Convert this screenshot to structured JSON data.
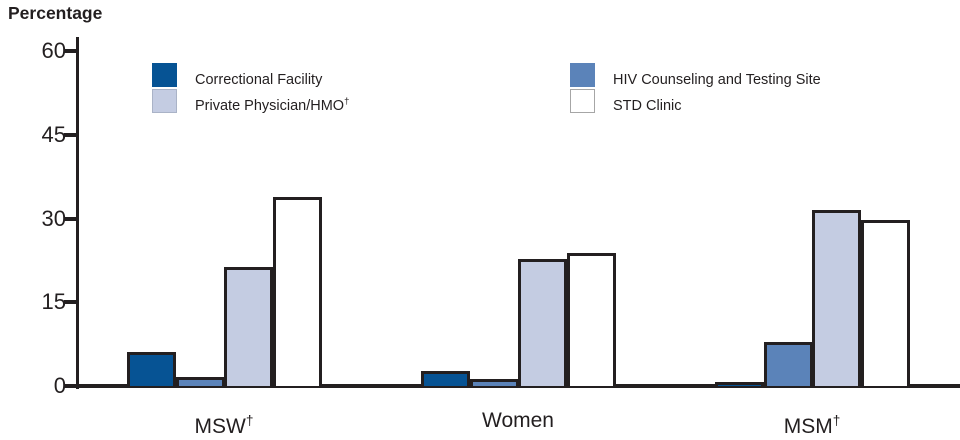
{
  "chart_data": {
    "type": "bar",
    "title": "Percentage",
    "ylabel": "Percentage",
    "ylim": [
      0,
      60
    ],
    "yticks": [
      0,
      15,
      30,
      45,
      60
    ],
    "grid": false,
    "legend_position": "top-inside",
    "axis_color": "#231f20",
    "bar_border_color": "#231f20",
    "categories": [
      {
        "label": "MSW",
        "sup": "†"
      },
      {
        "label": "Women",
        "sup": ""
      },
      {
        "label": "MSM",
        "sup": "†"
      }
    ],
    "series": [
      {
        "name": "Correctional Facility",
        "color": "#065394",
        "values": [
          6.1,
          2.7,
          0.8
        ]
      },
      {
        "name": "HIV Counseling and Testing Site",
        "color": "#5b83b9",
        "values": [
          1.6,
          1.2,
          7.8
        ]
      },
      {
        "name": "Private Physician/HMO†",
        "color": "#c4cce2",
        "values": [
          21.3,
          22.8,
          31.5
        ]
      },
      {
        "name": "STD Clinic",
        "color": "#ffffff",
        "values": [
          33.8,
          23.8,
          29.8
        ]
      }
    ]
  },
  "legend": {
    "items": [
      {
        "label": "Correctional Facility",
        "sup": "",
        "series": 0,
        "swatch_border": "#065394"
      },
      {
        "label": "Private Physician/HMO",
        "sup": "†",
        "series": 2,
        "swatch_border": "#aab3c7"
      },
      {
        "label": "HIV Counseling and Testing Site",
        "sup": "",
        "series": 1,
        "swatch_border": "#5b83b9"
      },
      {
        "label": "STD Clinic",
        "sup": "",
        "series": 3,
        "swatch_border": "#a6a6a6"
      }
    ]
  }
}
